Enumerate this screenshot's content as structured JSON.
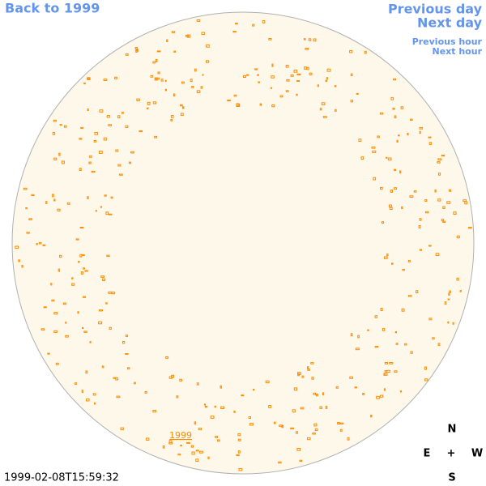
{
  "nav": {
    "back": "Back to 1999",
    "previous_day": "Previous day",
    "next_day": "Next day",
    "previous_hour": "Previous hour",
    "next_hour": "Next hour"
  },
  "disk_label": "1999",
  "compass": {
    "north": "N",
    "east": "E",
    "center": "+",
    "west": "W",
    "south": "S"
  },
  "timestamp": "1999-02-08T15:59:32"
}
